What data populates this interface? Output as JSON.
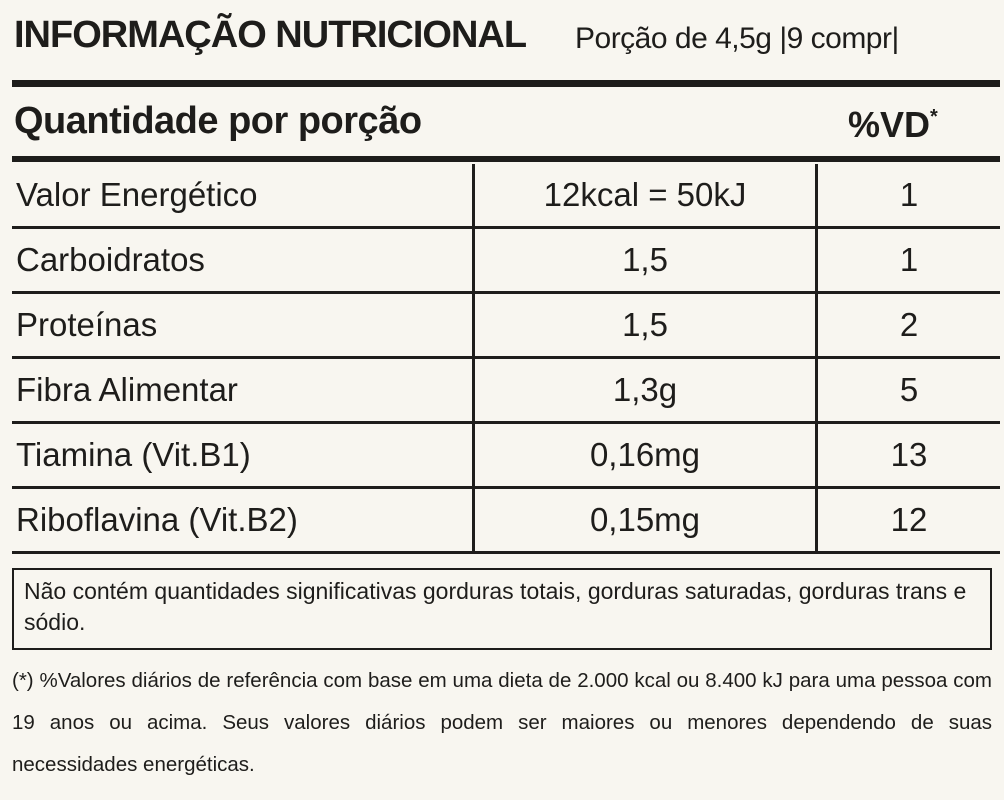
{
  "header": {
    "title": "INFORMAÇÃO NUTRICIONAL",
    "serving": "Porção de 4,5g |9 compr|"
  },
  "table": {
    "heading": "Quantidade por porção",
    "vd": "%VD",
    "vd_mark": "*",
    "rows": [
      [
        "Valor Energético",
        "12kcal = 50kJ",
        "1"
      ],
      [
        "Carboidratos",
        "1,5",
        "1"
      ],
      [
        "Proteínas",
        "1,5",
        "2"
      ],
      [
        "Fibra Alimentar",
        "1,3g",
        "5"
      ],
      [
        "Tiamina (Vit.B1)",
        "0,16mg",
        "13"
      ],
      [
        "Riboflavina (Vit.B2)",
        "0,15mg",
        "12"
      ]
    ]
  },
  "note": "Não contém quantidades significativas gorduras totais, gorduras saturadas, gorduras trans e sódio.",
  "footnote": "(*) %Valores diários de referência com base em uma dieta de 2.000 kcal ou 8.400 kJ para uma pessoa com 19 anos ou acima. Seus valores diários podem ser maiores ou menores dependendo de suas necessidades energéticas."
}
